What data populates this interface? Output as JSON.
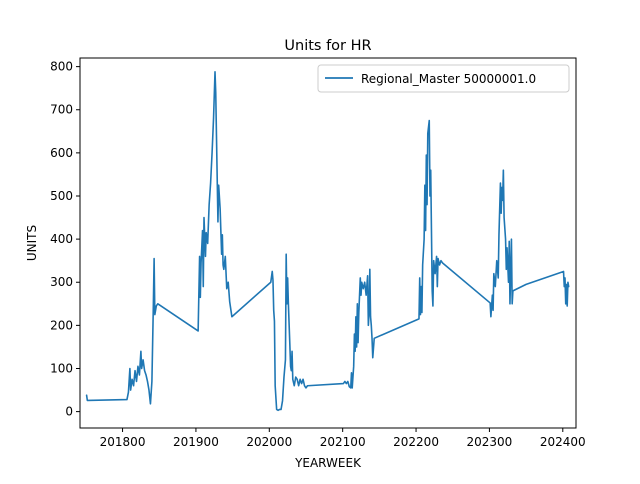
{
  "chart_data": {
    "type": "line",
    "title": "Units for HR",
    "xlabel": "YEARWEEK",
    "ylabel": "UNITS",
    "xlim": [
      201742,
      202418
    ],
    "ylim": [
      -38,
      820
    ],
    "xticks": [
      201800,
      201900,
      202000,
      202100,
      202200,
      202300,
      202400
    ],
    "xtick_labels": [
      "201800",
      "201900",
      "202000",
      "202100",
      "202200",
      "202300",
      "202400"
    ],
    "yticks": [
      0,
      100,
      200,
      300,
      400,
      500,
      600,
      700,
      800
    ],
    "ytick_labels": [
      "0",
      "100",
      "200",
      "300",
      "400",
      "500",
      "600",
      "700",
      "800"
    ],
    "grid": false,
    "legend_position": "upper right",
    "series": [
      {
        "name": "Regional_Master 50000001.0",
        "color": "#1f77b4",
        "points": [
          [
            201751,
            38
          ],
          [
            201752,
            26
          ],
          [
            201806,
            28
          ],
          [
            201808,
            45
          ],
          [
            201810,
            100
          ],
          [
            201811,
            50
          ],
          [
            201813,
            75
          ],
          [
            201815,
            60
          ],
          [
            201817,
            95
          ],
          [
            201819,
            70
          ],
          [
            201821,
            105
          ],
          [
            201823,
            85
          ],
          [
            201825,
            140
          ],
          [
            201826,
            100
          ],
          [
            201828,
            120
          ],
          [
            201830,
            95
          ],
          [
            201832,
            85
          ],
          [
            201834,
            70
          ],
          [
            201836,
            50
          ],
          [
            201838,
            18
          ],
          [
            201840,
            70
          ],
          [
            201842,
            250
          ],
          [
            201843,
            355
          ],
          [
            201844,
            225
          ],
          [
            201846,
            245
          ],
          [
            201848,
            250
          ],
          [
            201903,
            187
          ],
          [
            201905,
            360
          ],
          [
            201906,
            265
          ],
          [
            201907,
            345
          ],
          [
            201909,
            420
          ],
          [
            201910,
            290
          ],
          [
            201911,
            450
          ],
          [
            201913,
            360
          ],
          [
            201914,
            415
          ],
          [
            201916,
            390
          ],
          [
            201918,
            480
          ],
          [
            201920,
            530
          ],
          [
            201922,
            600
          ],
          [
            201924,
            680
          ],
          [
            201926,
            788
          ],
          [
            201927,
            740
          ],
          [
            201928,
            640
          ],
          [
            201930,
            440
          ],
          [
            201931,
            525
          ],
          [
            201933,
            470
          ],
          [
            201935,
            365
          ],
          [
            201936,
            410
          ],
          [
            201937,
            340
          ],
          [
            201938,
            330
          ],
          [
            201940,
            360
          ],
          [
            201942,
            285
          ],
          [
            201944,
            300
          ],
          [
            201946,
            255
          ],
          [
            201949,
            220
          ],
          [
            202002,
            300
          ],
          [
            202004,
            325
          ],
          [
            202005,
            305
          ],
          [
            202006,
            235
          ],
          [
            202007,
            210
          ],
          [
            202008,
            60
          ],
          [
            202010,
            5
          ],
          [
            202012,
            3
          ],
          [
            202014,
            5
          ],
          [
            202016,
            5
          ],
          [
            202018,
            25
          ],
          [
            202020,
            80
          ],
          [
            202022,
            120
          ],
          [
            202023,
            365
          ],
          [
            202024,
            250
          ],
          [
            202025,
            310
          ],
          [
            202026,
            250
          ],
          [
            202028,
            155
          ],
          [
            202029,
            105
          ],
          [
            202030,
            95
          ],
          [
            202031,
            140
          ],
          [
            202032,
            75
          ],
          [
            202034,
            60
          ],
          [
            202036,
            80
          ],
          [
            202038,
            75
          ],
          [
            202040,
            60
          ],
          [
            202042,
            75
          ],
          [
            202044,
            65
          ],
          [
            202046,
            75
          ],
          [
            202048,
            60
          ],
          [
            202050,
            55
          ],
          [
            202052,
            60
          ],
          [
            202101,
            65
          ],
          [
            202103,
            70
          ],
          [
            202105,
            65
          ],
          [
            202107,
            70
          ],
          [
            202109,
            58
          ],
          [
            202111,
            55
          ],
          [
            202112,
            90
          ],
          [
            202113,
            55
          ],
          [
            202115,
            105
          ],
          [
            202116,
            180
          ],
          [
            202117,
            140
          ],
          [
            202118,
            220
          ],
          [
            202119,
            150
          ],
          [
            202120,
            250
          ],
          [
            202121,
            160
          ],
          [
            202122,
            230
          ],
          [
            202124,
            310
          ],
          [
            202125,
            270
          ],
          [
            202126,
            300
          ],
          [
            202128,
            285
          ],
          [
            202130,
            300
          ],
          [
            202132,
            270
          ],
          [
            202134,
            315
          ],
          [
            202135,
            200
          ],
          [
            202136,
            230
          ],
          [
            202137,
            330
          ],
          [
            202138,
            220
          ],
          [
            202139,
            200
          ],
          [
            202140,
            170
          ],
          [
            202141,
            125
          ],
          [
            202143,
            170
          ],
          [
            202204,
            215
          ],
          [
            202205,
            310
          ],
          [
            202206,
            225
          ],
          [
            202207,
            290
          ],
          [
            202208,
            230
          ],
          [
            202209,
            340
          ],
          [
            202211,
            400
          ],
          [
            202212,
            525
          ],
          [
            202213,
            420
          ],
          [
            202214,
            595
          ],
          [
            202215,
            480
          ],
          [
            202216,
            645
          ],
          [
            202218,
            675
          ],
          [
            202219,
            500
          ],
          [
            202220,
            560
          ],
          [
            202221,
            420
          ],
          [
            202222,
            280
          ],
          [
            202223,
            245
          ],
          [
            202224,
            350
          ],
          [
            202226,
            320
          ],
          [
            202228,
            360
          ],
          [
            202229,
            290
          ],
          [
            202230,
            355
          ],
          [
            202232,
            340
          ],
          [
            202234,
            350
          ],
          [
            202236,
            345
          ],
          [
            202301,
            252
          ],
          [
            202302,
            220
          ],
          [
            202303,
            245
          ],
          [
            202304,
            270
          ],
          [
            202305,
            235
          ],
          [
            202306,
            320
          ],
          [
            202308,
            290
          ],
          [
            202310,
            350
          ],
          [
            202312,
            310
          ],
          [
            202313,
            410
          ],
          [
            202315,
            530
          ],
          [
            202316,
            460
          ],
          [
            202317,
            520
          ],
          [
            202318,
            490
          ],
          [
            202319,
            560
          ],
          [
            202320,
            450
          ],
          [
            202322,
            400
          ],
          [
            202323,
            330
          ],
          [
            202324,
            380
          ],
          [
            202326,
            300
          ],
          [
            202327,
            395
          ],
          [
            202328,
            250
          ],
          [
            202330,
            400
          ],
          [
            202331,
            250
          ],
          [
            202332,
            280
          ],
          [
            202350,
            295
          ],
          [
            202401,
            325
          ],
          [
            202402,
            290
          ],
          [
            202403,
            310
          ],
          [
            202404,
            250
          ],
          [
            202405,
            295
          ],
          [
            202406,
            245
          ],
          [
            202407,
            300
          ],
          [
            202408,
            290
          ]
        ]
      }
    ]
  }
}
